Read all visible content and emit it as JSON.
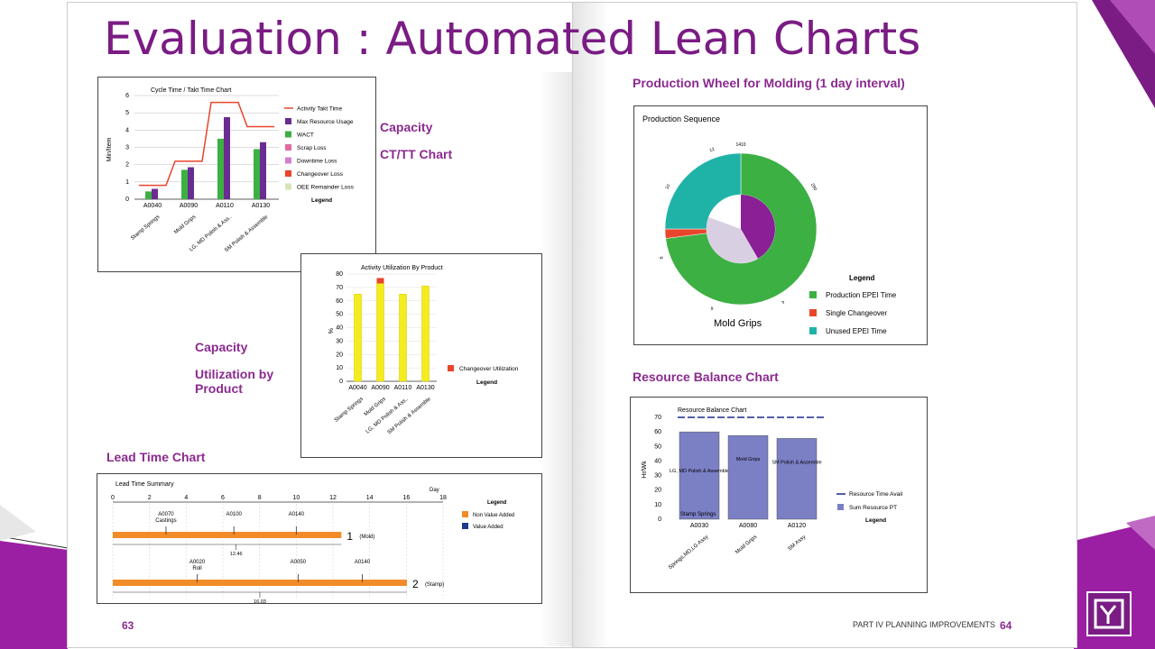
{
  "slide": {
    "title": "Evaluation : Automated Lean Charts",
    "page_left": "63",
    "page_right_label": "PART IV PLANNING IMPROVEMENTS",
    "page_right": "64"
  },
  "labels": {
    "capacity1": "Capacity",
    "ctt": "CT/TT Chart",
    "capacity2": "Capacity",
    "util1": "Utilization by",
    "util2": "Product",
    "lead": "Lead Time Chart",
    "wheel": "Production Wheel for Molding (1 day interval)",
    "resource": "Resource Balance Chart"
  },
  "colors": {
    "accent": "#8b2a8f",
    "green": "#3cb043",
    "purple": "#6a2c91",
    "orange": "#f28c28",
    "yellow": "#f4ec1e",
    "teal": "#1fb3a8",
    "red": "#e8452c",
    "blue": "#7b7fc4",
    "navy": "#1a2a8c"
  },
  "chart_data": [
    {
      "type": "bar",
      "title": "Cycle Time / Takt Time Chart",
      "ylabel": "Min/Item",
      "ylim": [
        0,
        6
      ],
      "yticks": [
        "0",
        "1",
        "2",
        "3",
        "4",
        "5",
        "6"
      ],
      "categories": [
        "A0040",
        "A0090",
        "A0110",
        "A0130"
      ],
      "category_names": [
        "Stamp Springs",
        "Mold Grips",
        "LG, MD Polish & Ass..",
        "SM Polish & Assemble"
      ],
      "takt_line": [
        0.8,
        2.2,
        5.6,
        4.2
      ],
      "series": [
        {
          "name": "WACT",
          "values": [
            0.45,
            1.7,
            3.5,
            2.9
          ]
        },
        {
          "name": "Max Resource Usage",
          "values": [
            0.6,
            1.85,
            4.75,
            3.3
          ]
        }
      ],
      "legend": [
        "Activity Takt Time",
        "Max Resource Usage",
        "WACT",
        "Scrap Loss",
        "Downtime Loss",
        "Changeover Loss",
        "OEE Remainder Loss"
      ],
      "legend_title": "Legend"
    },
    {
      "type": "bar",
      "title": "Activity Utilization By Product",
      "ylabel": "%",
      "ylim": [
        0,
        80
      ],
      "yticks": [
        "0",
        "10",
        "20",
        "30",
        "40",
        "50",
        "60",
        "70",
        "80"
      ],
      "categories": [
        "A0040",
        "A0090",
        "A0110",
        "A0130"
      ],
      "category_names": [
        "Stamp Springs",
        "Mold Grips",
        "LG, MD Polish & Ass..",
        "SM Polish & Assemble"
      ],
      "values": [
        65,
        73,
        65,
        71
      ],
      "changeover": [
        0,
        4,
        0,
        0
      ],
      "legend": [
        "Changeover Utilization"
      ],
      "legend_title": "Legend"
    },
    {
      "type": "pie",
      "title": "Production Sequence",
      "caption": "Mold Grips",
      "legend": [
        "Production EPEI Time",
        "Single Changeover",
        "Unused EPEI Time"
      ],
      "legend_title": "Legend",
      "slices": [
        {
          "name": "Production EPEI Time",
          "value": 73
        },
        {
          "name": "Single Changeover",
          "value": 2
        },
        {
          "name": "Unused EPEI Time",
          "value": 25
        }
      ],
      "ring_labels": [
        "1410",
        "280",
        "4",
        "6",
        "8",
        "10",
        "12"
      ]
    },
    {
      "type": "bar",
      "title": "Resource Balance Chart",
      "ylabel": "Hr/Wk",
      "ylim": [
        0,
        70
      ],
      "yticks": [
        "0",
        "10",
        "20",
        "30",
        "40",
        "50",
        "60",
        "70"
      ],
      "categories": [
        "A0030",
        "A0080",
        "A0120"
      ],
      "category_names": [
        "Springs,MD,LG Assy",
        "Mold Grips",
        "SM Assy"
      ],
      "bar_labels": [
        "LG, MD Polish & Assemble",
        "Mold Grips",
        "SM Polish & Assemble"
      ],
      "bottom_label": "Stamp Springs",
      "values": [
        60,
        57.5,
        55.5
      ],
      "avail_line": 70,
      "legend": [
        "Resource Time Avail",
        "Sum Resource PT"
      ],
      "legend_title": "Legend"
    },
    {
      "type": "bar",
      "title": "Lead Time Summary",
      "xlabel": "Day",
      "xlim": [
        0,
        18
      ],
      "xticks": [
        "0",
        "2",
        "4",
        "6",
        "8",
        "10",
        "12",
        "14",
        "16",
        "18"
      ],
      "legend": [
        "Non Value Added",
        "Value Added"
      ],
      "legend_title": "Legend",
      "rows": [
        {
          "num": "1",
          "tag": "(Mold)",
          "end": 12.46,
          "end_label": "12.46",
          "points": [
            {
              "x": 2.9,
              "label": "A0070",
              "sub": "Castings"
            },
            {
              "x": 6.6,
              "label": "A0100",
              "sub": ""
            },
            {
              "x": 10.0,
              "label": "A0140",
              "sub": ""
            }
          ]
        },
        {
          "num": "2",
          "tag": "(Stamp)",
          "end": 16.03,
          "end_label": "16.03",
          "points": [
            {
              "x": 4.6,
              "label": "A0020",
              "sub": "Roll"
            },
            {
              "x": 10.1,
              "label": "A0050",
              "sub": ""
            },
            {
              "x": 13.6,
              "label": "A0140",
              "sub": ""
            }
          ]
        }
      ]
    }
  ]
}
